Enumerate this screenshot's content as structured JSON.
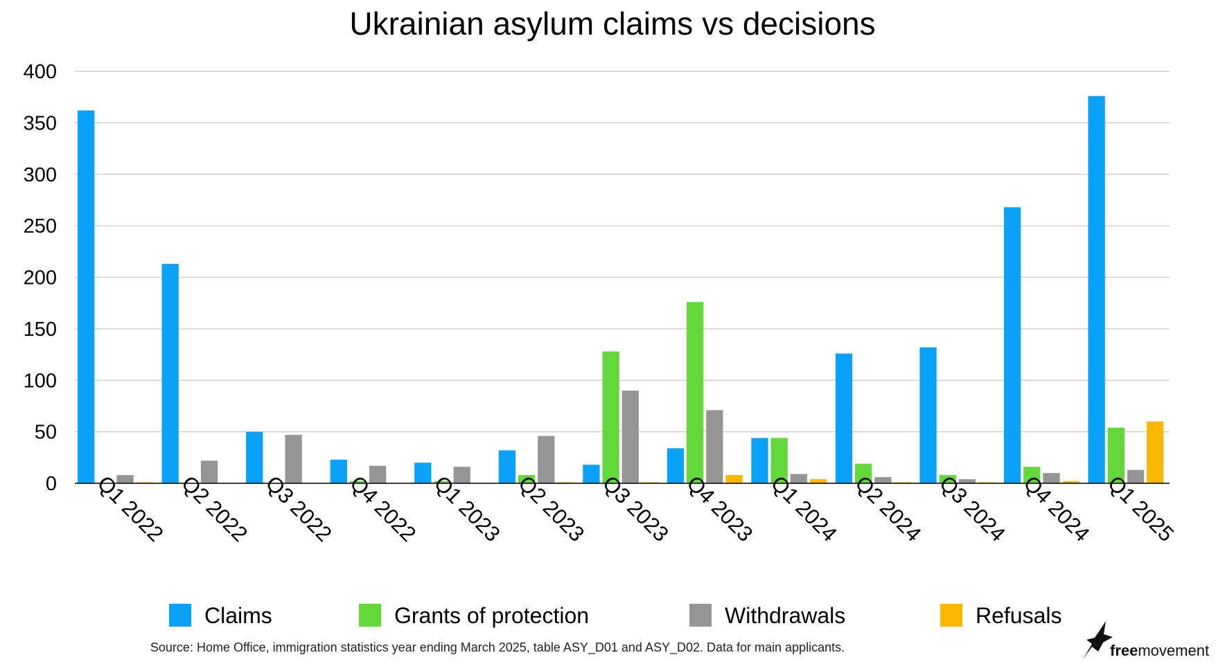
{
  "chart_data": {
    "type": "bar",
    "title": "Ukrainian asylum claims vs decisions",
    "xlabel": "",
    "ylabel": "",
    "ylim": [
      0,
      400
    ],
    "yticks": [
      0,
      50,
      100,
      150,
      200,
      250,
      300,
      350,
      400
    ],
    "grid": true,
    "legend_position": "bottom",
    "categories": [
      "Q1 2022",
      "Q2 2022",
      "Q3 2022",
      "Q4 2022",
      "Q1 2023",
      "Q2 2023",
      "Q3 2023",
      "Q4 2023",
      "Q1 2024",
      "Q2 2024",
      "Q3 2024",
      "Q4 2024",
      "Q1 2025"
    ],
    "series": [
      {
        "name": "Claims",
        "color": "#0aa2f8",
        "values": [
          362,
          213,
          50,
          23,
          20,
          32,
          18,
          34,
          44,
          126,
          132,
          268,
          376
        ]
      },
      {
        "name": "Grants of protection",
        "color": "#62d83a",
        "values": [
          0,
          0,
          0,
          2,
          2,
          8,
          128,
          176,
          44,
          19,
          8,
          16,
          54
        ]
      },
      {
        "name": "Withdrawals",
        "color": "#959595",
        "values": [
          8,
          22,
          47,
          17,
          16,
          46,
          90,
          71,
          9,
          6,
          4,
          10,
          13
        ]
      },
      {
        "name": "Refusals",
        "color": "#fcb800",
        "values": [
          1,
          0,
          0,
          0,
          0,
          1,
          1,
          8,
          4,
          1,
          1,
          2,
          60
        ]
      }
    ],
    "source": "Source: Home Office, immigration statistics year ending March 2025, table ASY_D01 and ASY_D02. Data for main applicants."
  },
  "logo": {
    "icon": "bird-icon",
    "free": "free",
    "movement": "movement"
  },
  "colors": {
    "gridline": "#c8c8c8",
    "axis": "#000000"
  }
}
